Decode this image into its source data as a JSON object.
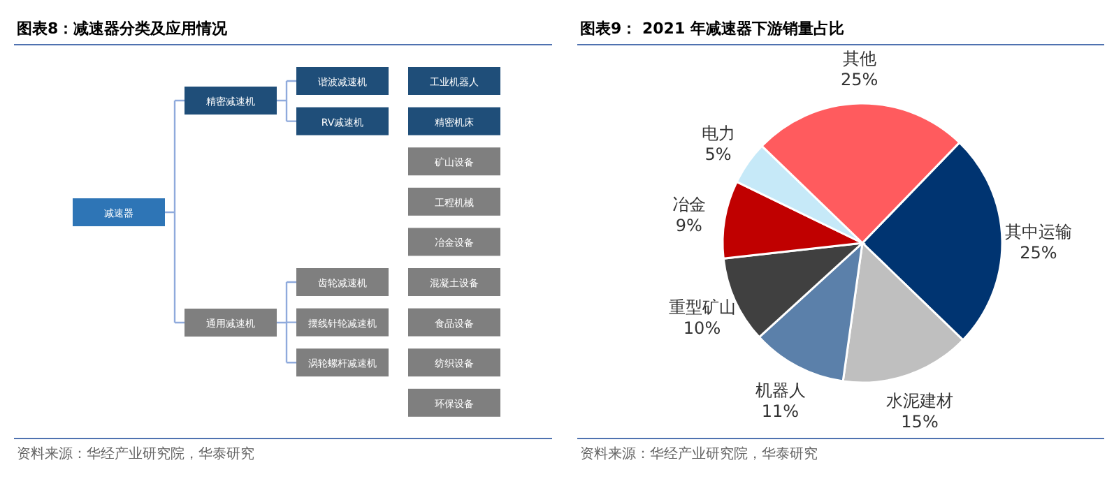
{
  "chart_data": [
    {
      "type": "other",
      "title": "图表8：减速器分类及应用情况",
      "categories": [
        "减速器",
        "精密减速机",
        "通用减速机",
        "谐波减速机",
        "RV减速机",
        "齿轮减速机",
        "摆线针轮减速机",
        "涡轮螺杆减速机",
        "工业机器人",
        "精密机床",
        "矿山设备",
        "工程机械",
        "冶金设备",
        "混凝土设备",
        "食品设备",
        "纺织设备",
        "环保设备"
      ],
      "annotations": [
        "资料来源：华经产业研究院，华泰研究"
      ]
    },
    {
      "type": "pie",
      "title": "图表9：  2021 年减速器下游销量占比",
      "categories": [
        "其中运输",
        "水泥建材",
        "机器人",
        "重型矿山",
        "冶金",
        "电力",
        "其他"
      ],
      "values": [
        25,
        15,
        11,
        10,
        9,
        5,
        25
      ],
      "value_labels": [
        "25%",
        "15%",
        "11%",
        "10%",
        "9%",
        "5%",
        "25%"
      ],
      "colors": [
        "#003471",
        "#bfbfbf",
        "#5b80aa",
        "#404040",
        "#c00000",
        "#c6e9f8",
        "#ff5b5e"
      ],
      "annotations": [
        "资料来源：华经产业研究院，华泰研究"
      ]
    }
  ]
}
